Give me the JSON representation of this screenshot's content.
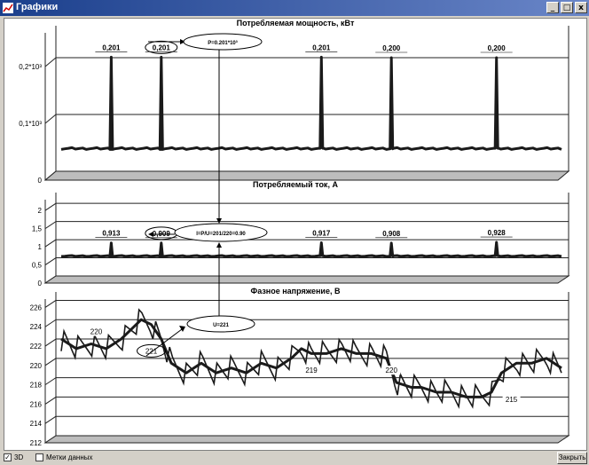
{
  "window": {
    "title": "Графики",
    "minimize": "_",
    "maximize": "□",
    "close": "x"
  },
  "footer": {
    "cb3d_label": "3D",
    "cb3d_mark": "✓",
    "cb_labels_label": "Метки данных",
    "close_label": "Закрыть"
  },
  "colors": {
    "line": "#1a1a1a",
    "grid": "#222222",
    "floor": "#bdbdbd"
  },
  "chart_data": [
    {
      "type": "line",
      "title": "Потребляемая мощность, кВт",
      "y_tick_labels": [
        "0",
        "0,1*10³",
        "0,2*10³"
      ],
      "y_ticks": [
        0,
        0.1,
        0.2
      ],
      "ylim": [
        0,
        0.25
      ],
      "baseline": 0.04,
      "peaks": [
        {
          "x": 0.1,
          "value": 0.201,
          "label": "0,201"
        },
        {
          "x": 0.2,
          "value": 0.201,
          "label": "0,201"
        },
        {
          "x": 0.52,
          "value": 0.201,
          "label": "0,201"
        },
        {
          "x": 0.66,
          "value": 0.2,
          "label": "0,200"
        },
        {
          "x": 0.87,
          "value": 0.2,
          "label": "0,200"
        }
      ],
      "annotation": "P=0.201*10³"
    },
    {
      "type": "line",
      "title": "Потребляемый ток, А",
      "y_tick_labels": [
        "0",
        "0,5",
        "1",
        "1,5",
        "2"
      ],
      "y_ticks": [
        0,
        0.5,
        1,
        1.5,
        2
      ],
      "ylim": [
        0,
        2.2
      ],
      "baseline": 0.55,
      "peaks": [
        {
          "x": 0.1,
          "value": 0.913,
          "label": "0,913"
        },
        {
          "x": 0.2,
          "value": 0.909,
          "label": "0,909"
        },
        {
          "x": 0.52,
          "value": 0.917,
          "label": "0,917"
        },
        {
          "x": 0.66,
          "value": 0.908,
          "label": "0,908"
        },
        {
          "x": 0.87,
          "value": 0.928,
          "label": "0,928"
        }
      ],
      "annotation": "I=P/U=201/220=0.90"
    },
    {
      "type": "line",
      "title": "Фазное напряжение, В",
      "y_tick_labels": [
        "212",
        "214",
        "216",
        "218",
        "220",
        "222",
        "224",
        "226"
      ],
      "y_ticks": [
        212,
        214,
        216,
        218,
        220,
        222,
        224,
        226
      ],
      "ylim": [
        212,
        226.5
      ],
      "x": [
        0,
        0.03,
        0.06,
        0.09,
        0.12,
        0.14,
        0.16,
        0.18,
        0.2,
        0.22,
        0.25,
        0.28,
        0.31,
        0.34,
        0.37,
        0.4,
        0.43,
        0.46,
        0.48,
        0.5,
        0.53,
        0.56,
        0.59,
        0.62,
        0.65,
        0.67,
        0.7,
        0.72,
        0.75,
        0.78,
        0.81,
        0.84,
        0.86,
        0.88,
        0.91,
        0.94,
        0.97,
        1.0
      ],
      "values": [
        222,
        221,
        221.5,
        221,
        222,
        223,
        224,
        223.5,
        222,
        219.5,
        218.5,
        219.5,
        218.5,
        219,
        218.5,
        219.5,
        219,
        220,
        221,
        220.5,
        220.5,
        221,
        220.5,
        220.5,
        220,
        217.5,
        217,
        217,
        216.5,
        216.5,
        216,
        216,
        216.5,
        218.5,
        219.5,
        219.5,
        220,
        219
      ],
      "labels": [
        {
          "x": 0.07,
          "value": 222.5,
          "label": "220"
        },
        {
          "x": 0.18,
          "value": 220.5,
          "label": "221"
        },
        {
          "x": 0.5,
          "value": 218.5,
          "label": "219"
        },
        {
          "x": 0.66,
          "value": 218.5,
          "label": "220"
        },
        {
          "x": 0.9,
          "value": 215.5,
          "label": "215"
        }
      ],
      "annotation": "U=221"
    }
  ]
}
